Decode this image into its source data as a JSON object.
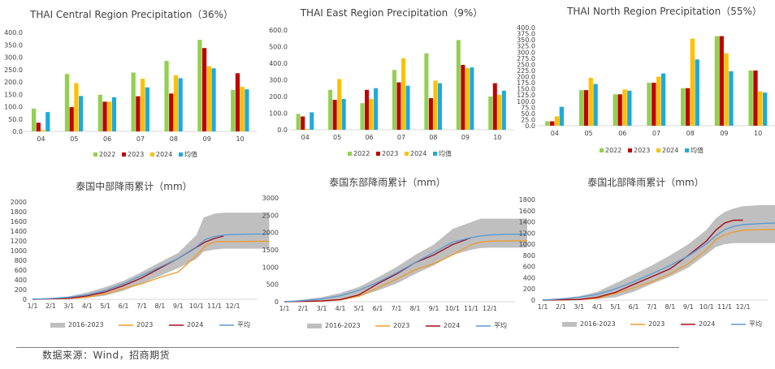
{
  "colors": {
    "y2022": "#92d050",
    "y2023": "#c00000",
    "y2024": "#ffc000",
    "avg": "#1eaadb",
    "band": "#bfbfbf",
    "line2023": "#ed9b2f",
    "line2024": "#a50d1a",
    "lineAvg": "#5b9bd5"
  },
  "source": "数据来源：Wind，招商期货",
  "chart_data": [
    {
      "type": "bar",
      "title": "THAI Central Region Precipitation（36%）",
      "categories": [
        "04",
        "05",
        "06",
        "07",
        "08",
        "09",
        "10"
      ],
      "ylim": [
        0,
        400
      ],
      "yticks": [
        "0.0",
        "50.0",
        "100.0",
        "150.0",
        "200.0",
        "250.0",
        "300.0",
        "350.0",
        "400.0"
      ],
      "ystep": 50,
      "series": [
        {
          "name": "2022",
          "values": [
            92,
            232,
            148,
            238,
            285,
            370,
            168
          ]
        },
        {
          "name": "2023",
          "values": [
            35,
            98,
            120,
            142,
            153,
            337,
            235
          ]
        },
        {
          "name": "2024",
          "values": [
            5,
            195,
            120,
            213,
            227,
            263,
            180
          ]
        },
        {
          "name": "均值",
          "values": [
            78,
            143,
            138,
            178,
            215,
            255,
            170
          ]
        }
      ],
      "legend": "bottom"
    },
    {
      "type": "bar",
      "title": "THAI East Region Precipitation（9%）",
      "categories": [
        "04",
        "05",
        "06",
        "07",
        "08",
        "09",
        "10"
      ],
      "ylim": [
        0,
        600
      ],
      "yticks": [
        "0.0",
        "100.0",
        "200.0",
        "300.0",
        "400.0",
        "500.0",
        "600.0"
      ],
      "ystep": 100,
      "series": [
        {
          "name": "2022",
          "values": [
            95,
            240,
            160,
            360,
            460,
            540,
            200
          ]
        },
        {
          "name": "2023",
          "values": [
            80,
            180,
            240,
            285,
            190,
            390,
            280
          ]
        },
        {
          "name": "2024",
          "values": [
            5,
            305,
            185,
            430,
            295,
            370,
            210
          ]
        },
        {
          "name": "均值",
          "values": [
            105,
            185,
            250,
            265,
            280,
            375,
            235
          ]
        }
      ],
      "legend": "bottom"
    },
    {
      "type": "bar",
      "title": "THAI North Region Precipitation（55%）",
      "categories": [
        "04",
        "05",
        "06",
        "07",
        "08",
        "09",
        "10"
      ],
      "ylim": [
        0,
        400
      ],
      "yticks": [
        "0.0",
        "25.0",
        "50.0",
        "75.0",
        "100.0",
        "125.0",
        "150.0",
        "175.0",
        "200.0",
        "225.0",
        "250.0",
        "275.0",
        "300.0",
        "325.0",
        "350.0",
        "375.0",
        "400.0"
      ],
      "ystep": 25,
      "series": [
        {
          "name": "2022",
          "values": [
            18,
            145,
            128,
            175,
            153,
            365,
            225
          ]
        },
        {
          "name": "2023",
          "values": [
            18,
            145,
            128,
            175,
            153,
            365,
            225
          ]
        },
        {
          "name": "2024",
          "values": [
            38,
            195,
            148,
            200,
            355,
            295,
            140
          ]
        },
        {
          "name": "均值",
          "values": [
            77,
            170,
            143,
            213,
            270,
            222,
            135
          ]
        }
      ],
      "legend": "bottom"
    },
    {
      "type": "area",
      "title": "泰国中部降雨累计（mm）",
      "xticks": [
        "1/1",
        "2/1",
        "3/1",
        "4/1",
        "5/1",
        "6/1",
        "7/1",
        "8/1",
        "9/1",
        "10/1",
        "11/1",
        "12/1"
      ],
      "ylim": [
        0,
        2000
      ],
      "yticks": [
        "0",
        "200",
        "400",
        "600",
        "800",
        "1000",
        "1200",
        "1400",
        "1600",
        "1800",
        "2000"
      ],
      "band": {
        "name": "2016-2023",
        "x": [
          0,
          1,
          2,
          3,
          4,
          5,
          6,
          7,
          8,
          9,
          9.4,
          10,
          10.5,
          11,
          12,
          13
        ],
        "low": [
          0,
          5,
          15,
          30,
          75,
          175,
          330,
          480,
          640,
          830,
          980,
          1020,
          1040,
          1040,
          1040,
          1040
        ],
        "high": [
          0,
          20,
          60,
          140,
          250,
          380,
          560,
          760,
          950,
          1320,
          1680,
          1760,
          1780,
          1780,
          1780,
          1780
        ]
      },
      "series": [
        {
          "name": "2023",
          "x": [
            0,
            1,
            2,
            3,
            4,
            5,
            6,
            7,
            8,
            9,
            9.5,
            10,
            10.5,
            11,
            12,
            13
          ],
          "y": [
            0,
            8,
            15,
            40,
            110,
            220,
            320,
            450,
            560,
            900,
            1100,
            1180,
            1185,
            1185,
            1190,
            1190
          ]
        },
        {
          "name": "2024",
          "x": [
            0,
            1,
            2,
            3,
            4,
            5,
            6,
            7,
            8,
            9,
            9.5,
            10,
            10.5
          ],
          "y": [
            0,
            10,
            20,
            70,
            150,
            280,
            440,
            640,
            840,
            1070,
            1180,
            1250,
            1300
          ]
        },
        {
          "name": "平均",
          "x": [
            0,
            1,
            2,
            3,
            4,
            5,
            6,
            7,
            8,
            9,
            9.5,
            10,
            10.5,
            11,
            12,
            13
          ],
          "y": [
            0,
            15,
            40,
            90,
            180,
            320,
            490,
            660,
            840,
            1080,
            1230,
            1290,
            1320,
            1330,
            1340,
            1340
          ]
        }
      ],
      "legend": "bottom"
    },
    {
      "type": "area",
      "title": "泰国东部降雨累计（mm）",
      "xticks": [
        "1/1",
        "2/1",
        "3/1",
        "4/1",
        "5/1",
        "6/1",
        "7/1",
        "8/1",
        "9/1",
        "10/1",
        "11/1",
        "12/1"
      ],
      "ylim": [
        0,
        3000
      ],
      "yticks": [
        "0",
        "500",
        "1000",
        "1500",
        "2000",
        "2500",
        "3000"
      ],
      "band": {
        "name": "2016-2023",
        "x": [
          0,
          1,
          2,
          3,
          4,
          5,
          6,
          7,
          8,
          9,
          10,
          10.5,
          11,
          12,
          13
        ],
        "low": [
          0,
          5,
          20,
          50,
          150,
          320,
          520,
          800,
          1050,
          1350,
          1500,
          1550,
          1560,
          1560,
          1560
        ],
        "high": [
          0,
          60,
          130,
          250,
          430,
          700,
          1000,
          1350,
          1650,
          2100,
          2300,
          2400,
          2400,
          2400,
          2400
        ]
      },
      "series": [
        {
          "name": "2023",
          "x": [
            0,
            1,
            2,
            3,
            4,
            5,
            6,
            7,
            8,
            9,
            10,
            10.5,
            11,
            12,
            13
          ],
          "y": [
            0,
            10,
            20,
            50,
            160,
            400,
            650,
            920,
            1100,
            1350,
            1650,
            1720,
            1750,
            1760,
            1760
          ]
        },
        {
          "name": "2024",
          "x": [
            0,
            1,
            2,
            3,
            4,
            5,
            6,
            7,
            8,
            9,
            10
          ],
          "y": [
            0,
            10,
            20,
            60,
            200,
            520,
            800,
            1130,
            1350,
            1650,
            1850
          ]
        },
        {
          "name": "平均",
          "x": [
            0,
            1,
            2,
            3,
            4,
            5,
            6,
            7,
            8,
            9,
            10,
            10.5,
            11,
            12,
            13
          ],
          "y": [
            0,
            30,
            80,
            170,
            330,
            560,
            830,
            1130,
            1420,
            1720,
            1850,
            1900,
            1930,
            1950,
            1950
          ]
        }
      ],
      "legend": "bottom"
    },
    {
      "type": "area",
      "title": "泰国北部降雨累计（mm）",
      "xticks": [
        "1/1",
        "2/1",
        "3/1",
        "4/1",
        "5/1",
        "6/1",
        "7/1",
        "8/1",
        "9/1",
        "10/1",
        "11/1",
        "12/1"
      ],
      "ylim": [
        0,
        1800
      ],
      "yticks": [
        "0",
        "200",
        "400",
        "600",
        "800",
        "1000",
        "1200",
        "1400",
        "1600",
        "1800"
      ],
      "band": {
        "name": "2016-2023",
        "x": [
          0,
          1,
          2,
          3,
          4,
          5,
          6,
          7,
          8,
          9,
          9.5,
          10,
          10.5,
          11,
          12,
          13
        ],
        "low": [
          0,
          5,
          10,
          20,
          50,
          150,
          290,
          420,
          580,
          820,
          950,
          1000,
          1020,
          1020,
          1020,
          1020
        ],
        "high": [
          0,
          30,
          70,
          150,
          300,
          460,
          620,
          800,
          1000,
          1260,
          1460,
          1580,
          1640,
          1680,
          1700,
          1700
        ]
      },
      "series": [
        {
          "name": "2023",
          "x": [
            0,
            1,
            2,
            3,
            4,
            5,
            6,
            7,
            8,
            9,
            9.5,
            10,
            10.5,
            11,
            12,
            13
          ],
          "y": [
            0,
            5,
            10,
            30,
            120,
            220,
            330,
            470,
            650,
            900,
            1080,
            1170,
            1220,
            1250,
            1260,
            1260
          ]
        },
        {
          "name": "2024",
          "x": [
            0,
            1,
            2,
            3,
            4,
            5,
            6,
            7,
            8,
            9,
            9.5,
            10,
            10.5,
            11
          ],
          "y": [
            0,
            5,
            10,
            50,
            140,
            280,
            420,
            560,
            800,
            1060,
            1250,
            1380,
            1430,
            1430
          ]
        },
        {
          "name": "平均",
          "x": [
            0,
            1,
            2,
            3,
            4,
            5,
            6,
            7,
            8,
            9,
            9.5,
            10,
            10.5,
            11,
            12,
            13
          ],
          "y": [
            0,
            20,
            50,
            100,
            200,
            330,
            470,
            620,
            790,
            1010,
            1150,
            1260,
            1320,
            1350,
            1370,
            1380
          ]
        }
      ],
      "legend": "bottom"
    }
  ]
}
